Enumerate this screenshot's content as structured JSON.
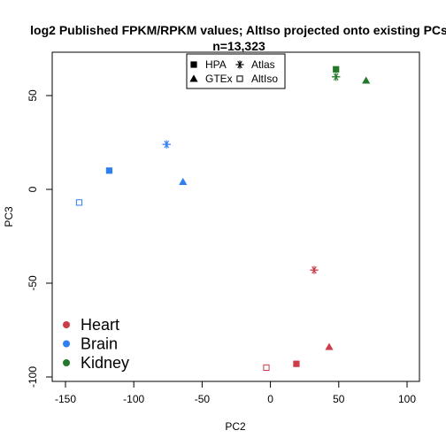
{
  "chart_data": {
    "type": "scatter",
    "title": "log2 Published FPKM/RPKM values; AltIso projected onto existing PCs",
    "subtitle": "n=13,323",
    "xlabel": "PC2",
    "ylabel": "PC3",
    "xlim": [
      -150,
      100
    ],
    "ylim": [
      -100,
      50
    ],
    "xticks": [
      -150,
      -100,
      -50,
      0,
      50,
      100
    ],
    "yticks": [
      -100,
      -50,
      0,
      50
    ],
    "grid": false,
    "shape_legend": {
      "placement": "top-center",
      "entries": [
        {
          "label": "HPA",
          "shape": "filled-square"
        },
        {
          "label": "Atlas",
          "shape": "asterisk"
        },
        {
          "label": "GTEx",
          "shape": "filled-triangle"
        },
        {
          "label": "AltIso",
          "shape": "open-square"
        }
      ]
    },
    "color_legend": {
      "placement": "bottom-left",
      "entries": [
        {
          "label": "Heart",
          "color": "#CD3C47"
        },
        {
          "label": "Brain",
          "color": "#2E7FF0"
        },
        {
          "label": "Kidney",
          "color": "#23782A"
        }
      ]
    },
    "points": [
      {
        "tissue": "Kidney",
        "dataset": "HPA",
        "x": 48,
        "y": 64
      },
      {
        "tissue": "Kidney",
        "dataset": "Atlas",
        "x": 48,
        "y": 60
      },
      {
        "tissue": "Kidney",
        "dataset": "GTEx",
        "x": 70,
        "y": 58
      },
      {
        "tissue": "Brain",
        "dataset": "Atlas",
        "x": -76,
        "y": 24
      },
      {
        "tissue": "Brain",
        "dataset": "HPA",
        "x": -118,
        "y": 10
      },
      {
        "tissue": "Brain",
        "dataset": "GTEx",
        "x": -64,
        "y": 4
      },
      {
        "tissue": "Brain",
        "dataset": "AltIso",
        "x": -140,
        "y": -7
      },
      {
        "tissue": "Heart",
        "dataset": "Atlas",
        "x": 32,
        "y": -43
      },
      {
        "tissue": "Heart",
        "dataset": "GTEx",
        "x": 43,
        "y": -84
      },
      {
        "tissue": "Heart",
        "dataset": "HPA",
        "x": 19,
        "y": -93
      },
      {
        "tissue": "Heart",
        "dataset": "AltIso",
        "x": -3,
        "y": -95
      }
    ]
  }
}
